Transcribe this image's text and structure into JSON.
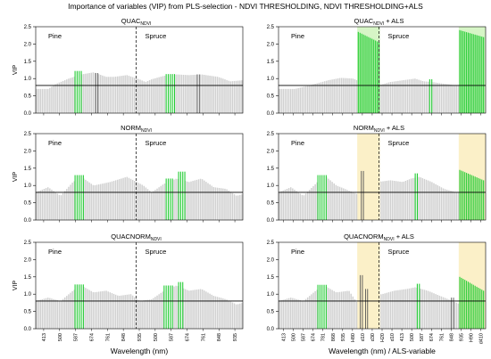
{
  "figure_title": "Importance of variables (VIP) from PLS-selection - NDVI THRESHOLDING, NDVI THRESHOLDING+ALS",
  "xlabel_left": "Wavelength (nm)",
  "xlabel_right": "Wavelength (nm) / ALS-variable",
  "x_ticks_left": [
    "413",
    "500",
    "587",
    "674",
    "761",
    "848",
    "935",
    "500",
    "587",
    "674",
    "761",
    "848",
    "935"
  ],
  "x_ticks_right": [
    "413",
    "500",
    "587",
    "674",
    "781",
    "868",
    "935",
    "H80",
    "d10",
    "d30",
    "H20",
    "d10",
    "413",
    "500",
    "587",
    "674",
    "761",
    "848",
    "935",
    "H90",
    "d410"
  ],
  "ylabel": "VIP",
  "colors": {
    "bar_gray": "#d0d0d0",
    "bar_green": "#22cc33",
    "bar_dark": "#555555",
    "als_highlight_yellow": "#fbf0c8",
    "als_highlight_green": "#d6f5c6",
    "threshold_line": "#000000"
  },
  "chart_data": [
    {
      "type": "bar",
      "title": "QUAC",
      "title_sub": "NDVI",
      "panel_position": "row1-left",
      "region_labels": [
        "Pine",
        "Spruce"
      ],
      "ylabel": "VIP",
      "ylim": [
        0,
        2.5
      ],
      "y_ticks": [
        "0.0",
        "0.5",
        "1.0",
        "1.5",
        "2.0",
        "2.5"
      ],
      "threshold": 0.8,
      "profile": [
        [
          0,
          0.7
        ],
        [
          0.06,
          0.7
        ],
        [
          0.1,
          0.85
        ],
        [
          0.16,
          1.0
        ],
        [
          0.22,
          1.12
        ],
        [
          0.28,
          1.18
        ],
        [
          0.34,
          1.05
        ],
        [
          0.38,
          1.05
        ],
        [
          0.44,
          1.1
        ],
        [
          0.5,
          0.98
        ],
        [
          0.53,
          0.9
        ],
        [
          0.56,
          0.98
        ],
        [
          0.62,
          1.08
        ],
        [
          0.68,
          1.12
        ],
        [
          0.74,
          1.1
        ],
        [
          0.8,
          1.12
        ],
        [
          0.88,
          1.05
        ],
        [
          0.94,
          0.92
        ],
        [
          1.0,
          0.95
        ]
      ],
      "highlights": [
        {
          "range": [
            0.19,
            0.22
          ],
          "vip": 1.22,
          "color": "green"
        },
        {
          "range": [
            0.29,
            0.3
          ],
          "vip": 1.16,
          "color": "dark"
        },
        {
          "range": [
            0.63,
            0.67
          ],
          "vip": 1.13,
          "color": "green"
        },
        {
          "range": [
            0.78,
            0.79
          ],
          "vip": 1.12,
          "color": "dark"
        }
      ],
      "als_bands": []
    },
    {
      "type": "bar",
      "title": "QUAC",
      "title_sub": "NDVI",
      "title_suffix": " + ALS",
      "panel_position": "row1-right",
      "region_labels": [
        "Pine",
        "Spruce"
      ],
      "ylabel": "",
      "ylim": [
        0,
        2.5
      ],
      "y_ticks": [
        "0.0",
        "0.5",
        "1.0",
        "1.5",
        "2.0",
        "2.5"
      ],
      "threshold": 0.8,
      "profile": [
        [
          0,
          0.7
        ],
        [
          0.08,
          0.7
        ],
        [
          0.16,
          0.82
        ],
        [
          0.24,
          0.95
        ],
        [
          0.3,
          1.02
        ],
        [
          0.36,
          1.0
        ],
        [
          0.4,
          0.9
        ],
        [
          0.44,
          0.7
        ],
        [
          0.48,
          0.8
        ],
        [
          0.54,
          0.9
        ],
        [
          0.6,
          0.95
        ],
        [
          0.66,
          1.0
        ],
        [
          0.7,
          0.92
        ],
        [
          0.74,
          0.9
        ],
        [
          0.8,
          0.85
        ],
        [
          0.86,
          0.8
        ],
        [
          0.88,
          0.8
        ],
        [
          1.0,
          0.8
        ]
      ],
      "highlights": [
        {
          "range": [
            0.385,
            0.485
          ],
          "vip": 2.35,
          "color": "green",
          "taper": 2.05
        },
        {
          "range": [
            0.73,
            0.74
          ],
          "vip": 0.98,
          "color": "green"
        },
        {
          "range": [
            0.875,
            0.99
          ],
          "vip": 2.4,
          "color": "green",
          "taper": 2.2
        }
      ],
      "als_bands": [
        {
          "range": [
            0.38,
            0.49
          ],
          "color": "green"
        },
        {
          "range": [
            0.87,
            1.0
          ],
          "color": "green"
        }
      ]
    },
    {
      "type": "bar",
      "title": "NORM",
      "title_sub": "NDVI",
      "panel_position": "row2-left",
      "region_labels": [
        "Pine",
        "Spruce"
      ],
      "ylabel": "VIP",
      "ylim": [
        0,
        2.5
      ],
      "y_ticks": [
        "0.0",
        "0.5",
        "1.0",
        "1.5",
        "2.0",
        "2.5"
      ],
      "threshold": 0.8,
      "profile": [
        [
          0,
          0.8
        ],
        [
          0.06,
          0.95
        ],
        [
          0.12,
          0.7
        ],
        [
          0.18,
          1.1
        ],
        [
          0.22,
          1.25
        ],
        [
          0.28,
          1.0
        ],
        [
          0.36,
          1.1
        ],
        [
          0.44,
          1.25
        ],
        [
          0.52,
          1.0
        ],
        [
          0.56,
          0.8
        ],
        [
          0.62,
          1.05
        ],
        [
          0.68,
          1.2
        ],
        [
          0.74,
          1.1
        ],
        [
          0.8,
          1.2
        ],
        [
          0.86,
          0.95
        ],
        [
          0.92,
          0.9
        ],
        [
          0.97,
          0.7
        ],
        [
          1.0,
          0.75
        ]
      ],
      "highlights": [
        {
          "range": [
            0.19,
            0.23
          ],
          "vip": 1.3,
          "color": "green"
        },
        {
          "range": [
            0.63,
            0.66
          ],
          "vip": 1.2,
          "color": "green"
        },
        {
          "range": [
            0.69,
            0.72
          ],
          "vip": 1.4,
          "color": "green"
        }
      ],
      "als_bands": []
    },
    {
      "type": "bar",
      "title": "NORM",
      "title_sub": "NDVI",
      "title_suffix": " + ALS",
      "panel_position": "row2-right",
      "region_labels": [
        "Pine",
        "Spruce"
      ],
      "ylabel": "",
      "ylim": [
        0,
        2.5
      ],
      "y_ticks": [
        "0.0",
        "0.5",
        "1.0",
        "1.5",
        "2.0",
        "2.5"
      ],
      "threshold": 0.8,
      "profile": [
        [
          0,
          0.8
        ],
        [
          0.06,
          0.95
        ],
        [
          0.12,
          0.7
        ],
        [
          0.18,
          1.05
        ],
        [
          0.22,
          1.3
        ],
        [
          0.28,
          1.0
        ],
        [
          0.34,
          0.85
        ],
        [
          0.38,
          0.75
        ],
        [
          0.42,
          0.8
        ],
        [
          0.48,
          1.1
        ],
        [
          0.54,
          1.15
        ],
        [
          0.6,
          1.1
        ],
        [
          0.64,
          1.2
        ],
        [
          0.68,
          1.25
        ],
        [
          0.74,
          1.1
        ],
        [
          0.8,
          0.9
        ],
        [
          0.86,
          0.8
        ],
        [
          1.0,
          0.8
        ]
      ],
      "highlights": [
        {
          "range": [
            0.19,
            0.23
          ],
          "vip": 1.3,
          "color": "green"
        },
        {
          "range": [
            0.4,
            0.41
          ],
          "vip": 1.42,
          "color": "dark"
        },
        {
          "range": [
            0.66,
            0.67
          ],
          "vip": 1.35,
          "color": "green"
        },
        {
          "range": [
            0.875,
            0.99
          ],
          "vip": 1.45,
          "color": "green",
          "taper": 1.15
        }
      ],
      "als_bands": [
        {
          "range": [
            0.38,
            0.49
          ],
          "color": "yellow"
        },
        {
          "range": [
            0.87,
            1.0
          ],
          "color": "yellow"
        }
      ]
    },
    {
      "type": "bar",
      "title": "QUACNORM",
      "title_sub": "NDVI",
      "panel_position": "row3-left",
      "region_labels": [
        "Pine",
        "Spruce"
      ],
      "ylabel": "VIP",
      "ylim": [
        0,
        2.5
      ],
      "y_ticks": [
        "0.0",
        "0.5",
        "1.0",
        "1.5",
        "2.0",
        "2.5"
      ],
      "threshold": 0.8,
      "profile": [
        [
          0,
          0.8
        ],
        [
          0.06,
          0.9
        ],
        [
          0.12,
          0.8
        ],
        [
          0.18,
          1.1
        ],
        [
          0.22,
          1.25
        ],
        [
          0.28,
          1.05
        ],
        [
          0.34,
          1.1
        ],
        [
          0.4,
          0.95
        ],
        [
          0.46,
          1.0
        ],
        [
          0.5,
          0.8
        ],
        [
          0.56,
          0.85
        ],
        [
          0.62,
          1.1
        ],
        [
          0.68,
          1.25
        ],
        [
          0.74,
          1.1
        ],
        [
          0.8,
          1.15
        ],
        [
          0.86,
          0.95
        ],
        [
          0.92,
          0.85
        ],
        [
          0.97,
          0.7
        ],
        [
          1.0,
          0.75
        ]
      ],
      "highlights": [
        {
          "range": [
            0.19,
            0.23
          ],
          "vip": 1.28,
          "color": "green"
        },
        {
          "range": [
            0.62,
            0.66
          ],
          "vip": 1.25,
          "color": "green"
        },
        {
          "range": [
            0.69,
            0.71
          ],
          "vip": 1.35,
          "color": "green"
        }
      ],
      "als_bands": []
    },
    {
      "type": "bar",
      "title": "QUACNORM",
      "title_sub": "NDVI",
      "title_suffix": " + ALS",
      "panel_position": "row3-right",
      "region_labels": [
        "Pine",
        "Spruce"
      ],
      "ylabel": "",
      "ylim": [
        0,
        2.5
      ],
      "y_ticks": [
        "0.0",
        "0.5",
        "1.0",
        "1.5",
        "2.0",
        "2.5"
      ],
      "threshold": 0.8,
      "profile": [
        [
          0,
          0.8
        ],
        [
          0.06,
          0.9
        ],
        [
          0.12,
          0.8
        ],
        [
          0.18,
          1.1
        ],
        [
          0.22,
          1.25
        ],
        [
          0.28,
          1.05
        ],
        [
          0.34,
          1.1
        ],
        [
          0.38,
          0.75
        ],
        [
          0.44,
          0.95
        ],
        [
          0.5,
          1.0
        ],
        [
          0.56,
          1.1
        ],
        [
          0.62,
          1.15
        ],
        [
          0.66,
          1.2
        ],
        [
          0.72,
          1.1
        ],
        [
          0.78,
          0.95
        ],
        [
          0.84,
          0.8
        ],
        [
          0.88,
          0.7
        ],
        [
          1.0,
          0.75
        ]
      ],
      "highlights": [
        {
          "range": [
            0.19,
            0.23
          ],
          "vip": 1.27,
          "color": "green"
        },
        {
          "range": [
            0.395,
            0.405
          ],
          "vip": 1.55,
          "color": "dark"
        },
        {
          "range": [
            0.42,
            0.43
          ],
          "vip": 1.15,
          "color": "dark"
        },
        {
          "range": [
            0.67,
            0.68
          ],
          "vip": 1.3,
          "color": "green"
        },
        {
          "range": [
            0.835,
            0.845
          ],
          "vip": 0.9,
          "color": "dark"
        },
        {
          "range": [
            0.875,
            0.99
          ],
          "vip": 1.5,
          "color": "green",
          "taper": 1.1
        }
      ],
      "als_bands": [
        {
          "range": [
            0.38,
            0.49
          ],
          "color": "yellow"
        },
        {
          "range": [
            0.87,
            1.0
          ],
          "color": "yellow"
        }
      ]
    }
  ]
}
